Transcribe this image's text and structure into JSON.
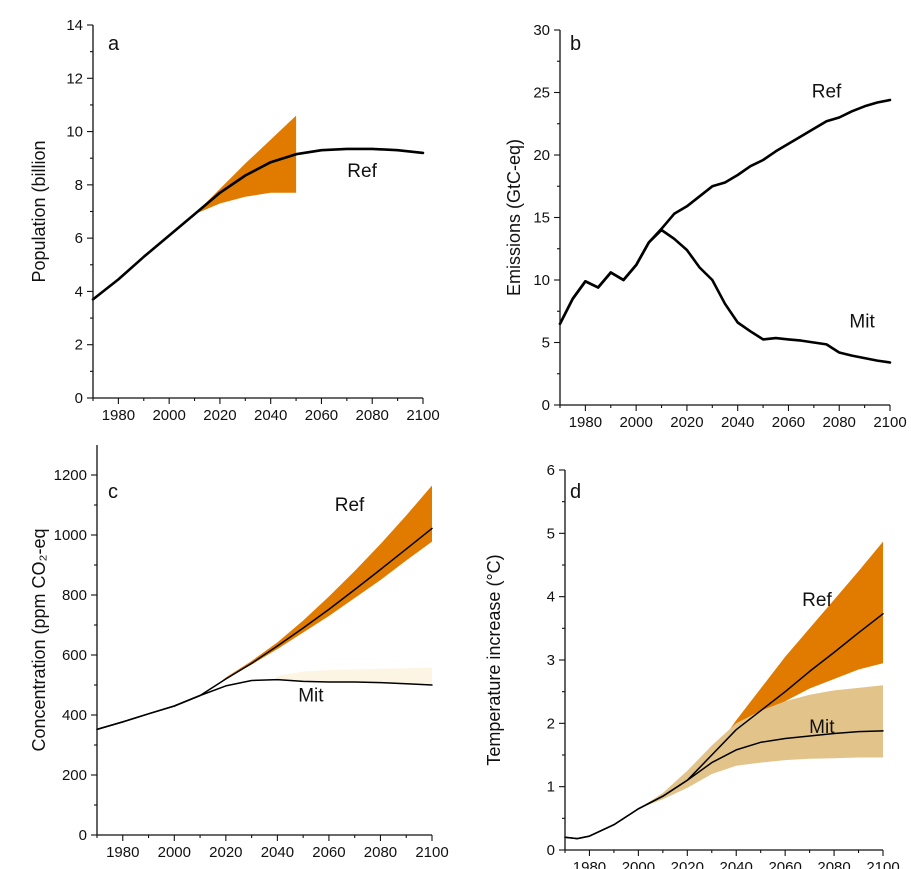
{
  "chart_data": [
    {
      "type": "line",
      "panel_label": "a",
      "ylabel": "Population (billion",
      "xlim": [
        1970,
        2100
      ],
      "ylim": [
        0,
        14
      ],
      "xticks": [
        1980,
        2000,
        2020,
        2040,
        2060,
        2080,
        2100
      ],
      "yticks": [
        0,
        2,
        4,
        6,
        8,
        10,
        12,
        14
      ],
      "series": [
        {
          "name": "Ref",
          "color": "#000000",
          "x": [
            1970,
            1980,
            1990,
            2000,
            2010,
            2020,
            2030,
            2040,
            2050,
            2060,
            2070,
            2080,
            2090,
            2100
          ],
          "y": [
            3.7,
            4.45,
            5.3,
            6.1,
            6.9,
            7.7,
            8.35,
            8.85,
            9.15,
            9.3,
            9.35,
            9.35,
            9.3,
            9.2
          ]
        }
      ],
      "bands": [
        {
          "color": "#e07b00",
          "x": [
            2010,
            2020,
            2030,
            2040,
            2050
          ],
          "lower": [
            6.9,
            7.3,
            7.55,
            7.7,
            7.7
          ],
          "upper": [
            6.9,
            7.85,
            8.8,
            9.7,
            10.6
          ]
        }
      ],
      "annotations": [
        {
          "text": "Ref",
          "x": 2076,
          "y": 8.3
        }
      ]
    },
    {
      "type": "line",
      "panel_label": "b",
      "ylabel": "Emissions (GtC-eq)",
      "xlim": [
        1970,
        2100
      ],
      "ylim": [
        0,
        30
      ],
      "xticks": [
        1980,
        2000,
        2020,
        2040,
        2060,
        2080,
        2100
      ],
      "yticks": [
        0,
        5,
        10,
        15,
        20,
        25,
        30
      ],
      "series": [
        {
          "name": "Ref",
          "color": "#000000",
          "x": [
            1970,
            1975,
            1980,
            1985,
            1990,
            1995,
            2000,
            2005,
            2010,
            2015,
            2020,
            2025,
            2030,
            2035,
            2040,
            2045,
            2050,
            2055,
            2060,
            2065,
            2070,
            2075,
            2080,
            2085,
            2090,
            2095,
            2100
          ],
          "y": [
            6.5,
            8.5,
            9.9,
            9.4,
            10.6,
            10.0,
            11.2,
            13.0,
            14.1,
            15.3,
            15.9,
            16.7,
            17.5,
            17.8,
            18.4,
            19.1,
            19.6,
            20.3,
            20.9,
            21.5,
            22.1,
            22.7,
            23.0,
            23.5,
            23.9,
            24.2,
            24.4
          ]
        },
        {
          "name": "Mit",
          "color": "#000000",
          "x": [
            1970,
            1975,
            1980,
            1985,
            1990,
            1995,
            2000,
            2005,
            2010,
            2015,
            2020,
            2025,
            2030,
            2035,
            2040,
            2045,
            2050,
            2055,
            2060,
            2065,
            2070,
            2075,
            2080,
            2085,
            2090,
            2095,
            2100
          ],
          "y": [
            6.5,
            8.5,
            9.9,
            9.4,
            10.6,
            10.0,
            11.2,
            13.0,
            14.0,
            13.3,
            12.4,
            11.0,
            10.0,
            8.1,
            6.6,
            5.9,
            5.25,
            5.35,
            5.25,
            5.15,
            5.0,
            4.85,
            4.2,
            3.95,
            3.75,
            3.55,
            3.4
          ]
        }
      ],
      "annotations": [
        {
          "text": "Ref",
          "x": 2075,
          "y": 24.6
        },
        {
          "text": "Mit",
          "x": 2089,
          "y": 6.2
        }
      ]
    },
    {
      "type": "line",
      "panel_label": "c",
      "ylabel": "Concentration (ppm CO₂-eq",
      "xlim": [
        1970,
        2100
      ],
      "ylim": [
        0,
        1300
      ],
      "xticks": [
        1980,
        2000,
        2020,
        2040,
        2060,
        2080,
        2100
      ],
      "yticks": [
        0,
        200,
        400,
        600,
        800,
        1000,
        1200
      ],
      "series": [
        {
          "name": "Ref",
          "color": "#000000",
          "x": [
            1970,
            1980,
            1990,
            2000,
            2010,
            2020,
            2030,
            2040,
            2050,
            2060,
            2070,
            2080,
            2090,
            2100
          ],
          "y": [
            352,
            377,
            404,
            430,
            465,
            520,
            572,
            630,
            690,
            752,
            818,
            885,
            953,
            1022
          ]
        },
        {
          "name": "Mit",
          "color": "#000000",
          "x": [
            1970,
            1980,
            1990,
            2000,
            2010,
            2020,
            2030,
            2040,
            2050,
            2060,
            2070,
            2080,
            2090,
            2100
          ],
          "y": [
            352,
            377,
            404,
            430,
            465,
            497,
            515,
            518,
            512,
            510,
            510,
            508,
            504,
            500
          ]
        }
      ],
      "bands": [
        {
          "color": "#e07b00",
          "x": [
            2015,
            2020,
            2030,
            2040,
            2050,
            2060,
            2070,
            2080,
            2090,
            2100
          ],
          "lower": [
            490,
            520,
            568,
            620,
            675,
            730,
            790,
            850,
            915,
            978
          ],
          "upper": [
            490,
            525,
            580,
            642,
            715,
            795,
            880,
            970,
            1065,
            1165
          ]
        },
        {
          "color": "#fdf5e4",
          "x": [
            2040,
            2050,
            2060,
            2070,
            2080,
            2090,
            2100
          ],
          "lower": [
            518,
            512,
            510,
            510,
            508,
            504,
            500
          ],
          "upper": [
            530,
            545,
            550,
            552,
            554,
            556,
            558
          ]
        }
      ],
      "annotations": [
        {
          "text": "Ref",
          "x": 2068,
          "y": 1080
        },
        {
          "text": "Mit",
          "x": 2053,
          "y": 445
        }
      ]
    },
    {
      "type": "line",
      "panel_label": "d",
      "ylabel": "Temperature increase (°C)",
      "xlim": [
        1970,
        2100
      ],
      "ylim": [
        0,
        6
      ],
      "xticks": [
        1980,
        2000,
        2020,
        2040,
        2060,
        2080,
        2100
      ],
      "yticks": [
        0,
        1,
        2,
        3,
        4,
        5,
        6
      ],
      "series": [
        {
          "name": "Ref",
          "color": "#000000",
          "x": [
            1970,
            1975,
            1980,
            1990,
            2000,
            2010,
            2020,
            2030,
            2040,
            2050,
            2060,
            2070,
            2080,
            2090,
            2100
          ],
          "y": [
            0.2,
            0.18,
            0.22,
            0.4,
            0.65,
            0.85,
            1.1,
            1.5,
            1.9,
            2.2,
            2.5,
            2.82,
            3.12,
            3.43,
            3.73
          ]
        },
        {
          "name": "Mit",
          "color": "#000000",
          "x": [
            1970,
            1975,
            1980,
            1990,
            2000,
            2010,
            2020,
            2030,
            2040,
            2050,
            2060,
            2070,
            2080,
            2090,
            2100
          ],
          "y": [
            0.2,
            0.18,
            0.22,
            0.4,
            0.65,
            0.85,
            1.1,
            1.38,
            1.58,
            1.7,
            1.76,
            1.8,
            1.84,
            1.87,
            1.88
          ]
        }
      ],
      "bands": [
        {
          "color": "#e07b00",
          "x": [
            2030,
            2040,
            2050,
            2060,
            2070,
            2080,
            2090,
            2100
          ],
          "lower": [
            1.5,
            1.9,
            2.15,
            2.35,
            2.55,
            2.7,
            2.85,
            2.95
          ],
          "upper": [
            1.5,
            2.05,
            2.55,
            3.05,
            3.5,
            3.95,
            4.4,
            4.87
          ]
        },
        {
          "color": "#e2c48a",
          "x": [
            2000,
            2010,
            2020,
            2030,
            2040,
            2050,
            2060,
            2070,
            2080,
            2090,
            2100
          ],
          "lower": [
            0.65,
            0.8,
            0.98,
            1.2,
            1.33,
            1.38,
            1.42,
            1.44,
            1.45,
            1.46,
            1.46
          ],
          "upper": [
            0.65,
            0.9,
            1.25,
            1.65,
            2.0,
            2.2,
            2.35,
            2.45,
            2.52,
            2.56,
            2.6
          ]
        }
      ],
      "annotations": [
        {
          "text": "Ref",
          "x": 2073,
          "y": 3.85
        },
        {
          "text": "Mit",
          "x": 2075,
          "y": 1.85
        }
      ]
    }
  ]
}
